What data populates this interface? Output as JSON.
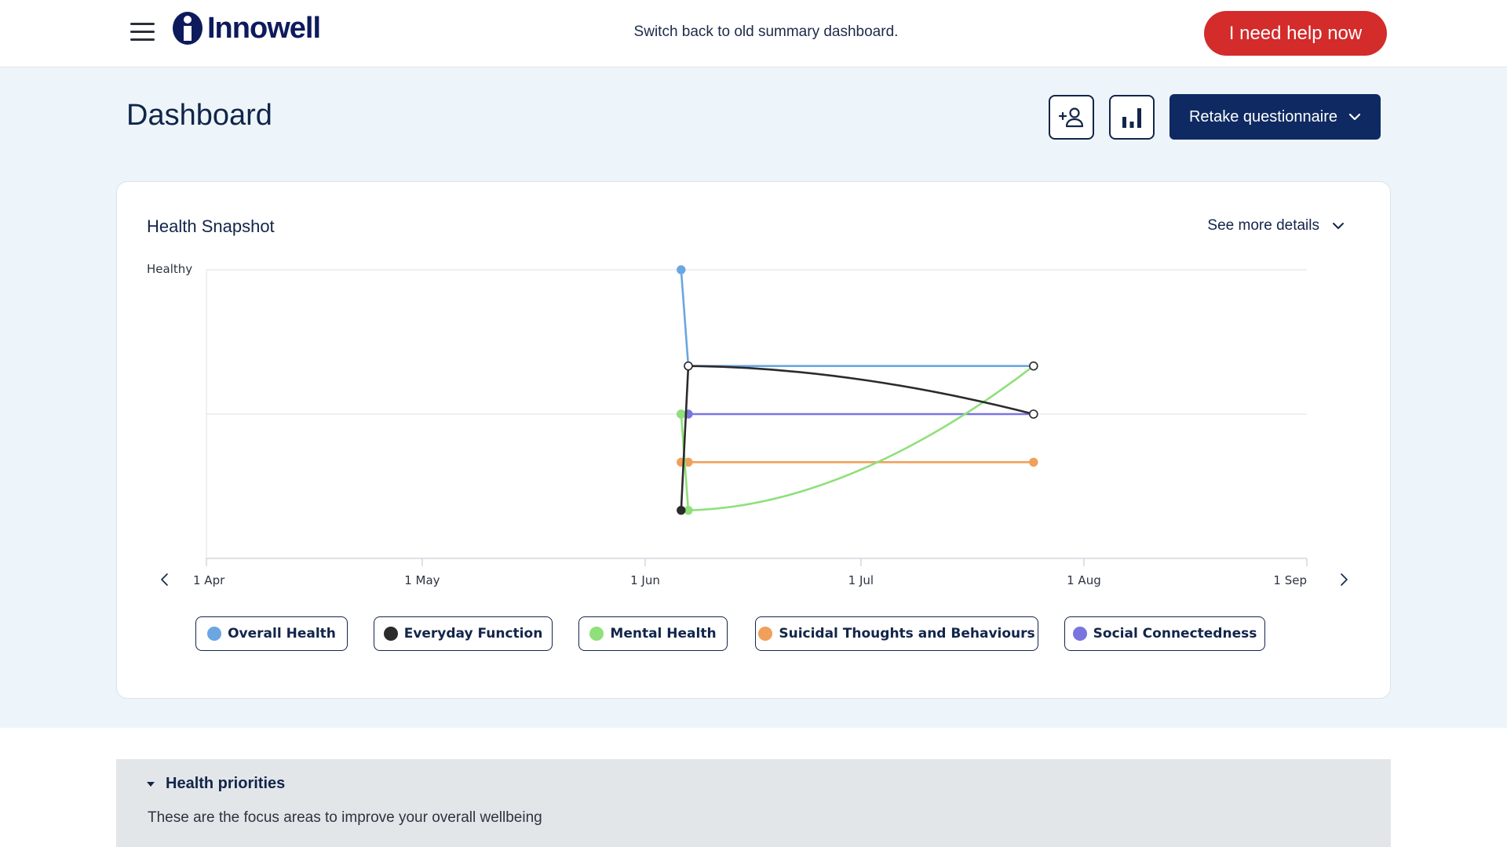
{
  "header": {
    "logo_text": "Innowell",
    "switch_link": "Switch back to old summary dashboard.",
    "help_button": "I need help now"
  },
  "page": {
    "title": "Dashboard",
    "retake_button": "Retake questionnaire"
  },
  "snapshot": {
    "title": "Health Snapshot",
    "details_toggle": "See more details"
  },
  "chart_data": {
    "type": "line",
    "ylabel_top": "Healthy",
    "x_ticks": [
      "1 Apr",
      "1 May",
      "1 Jun",
      "1 Jul",
      "1 Aug",
      "1 Sep"
    ],
    "xlim": [
      "2024-04-01",
      "2024-09-01"
    ],
    "ylim": [
      0,
      3
    ],
    "grid": true,
    "series": [
      {
        "name": "Overall Health",
        "color": "#6aa6e2",
        "points": [
          [
            "2024-06-06",
            3.0
          ],
          [
            "2024-06-07",
            2.0
          ],
          [
            "2024-07-25",
            2.0
          ]
        ]
      },
      {
        "name": "Everyday Function",
        "color": "#2b2b2b",
        "points": [
          [
            "2024-06-06",
            0.5
          ],
          [
            "2024-06-07",
            2.0
          ],
          [
            "2024-07-25",
            1.5
          ]
        ]
      },
      {
        "name": "Mental Health",
        "color": "#8fe07a",
        "points": [
          [
            "2024-06-06",
            1.5
          ],
          [
            "2024-06-07",
            0.5
          ],
          [
            "2024-07-25",
            2.0
          ]
        ]
      },
      {
        "name": "Suicidal Thoughts and Behaviours",
        "color": "#f0a05a",
        "points": [
          [
            "2024-06-06",
            1.0
          ],
          [
            "2024-06-07",
            1.0
          ],
          [
            "2024-07-25",
            1.0
          ]
        ]
      },
      {
        "name": "Social Connectedness",
        "color": "#7a74e0",
        "points": [
          [
            "2024-06-06",
            1.5
          ],
          [
            "2024-06-07",
            1.5
          ],
          [
            "2024-07-25",
            1.5
          ]
        ]
      }
    ]
  },
  "priorities": {
    "title": "Health priorities",
    "description": "These are the focus areas to improve your overall wellbeing"
  }
}
